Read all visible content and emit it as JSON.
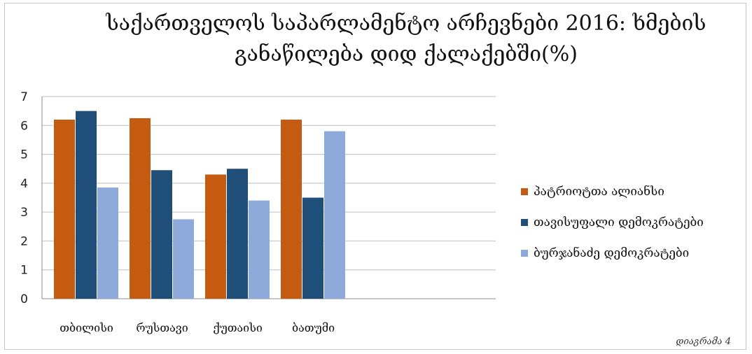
{
  "chart_data": {
    "type": "bar",
    "title_line1": "საქართველოს საპარლამენტო არჩევნები 2016: ხმების",
    "title_line2": "განაწილება დიდ ქალაქებში(%)",
    "categories": [
      "თბილისი",
      "რუსთავი",
      "ქუთაისი",
      "ბათუმი"
    ],
    "series": [
      {
        "name": "პატრიოტთა ალიანსი",
        "color": "#c55a11",
        "values": [
          6.2,
          6.25,
          4.3,
          6.2
        ]
      },
      {
        "name": "თავისუფალი დემოკრატები",
        "color": "#1f4e79",
        "values": [
          6.5,
          4.45,
          4.5,
          3.5
        ]
      },
      {
        "name": "ბურჯანაძე დემოკრატები",
        "color": "#8eaadb",
        "values": [
          3.85,
          2.75,
          3.4,
          5.8
        ]
      }
    ],
    "ylim": [
      0,
      7
    ],
    "yticks": [
      0,
      1,
      2,
      3,
      4,
      5,
      6,
      7
    ],
    "grid": true,
    "legend_position": "right"
  },
  "footnote": "დიაგრამა 4"
}
